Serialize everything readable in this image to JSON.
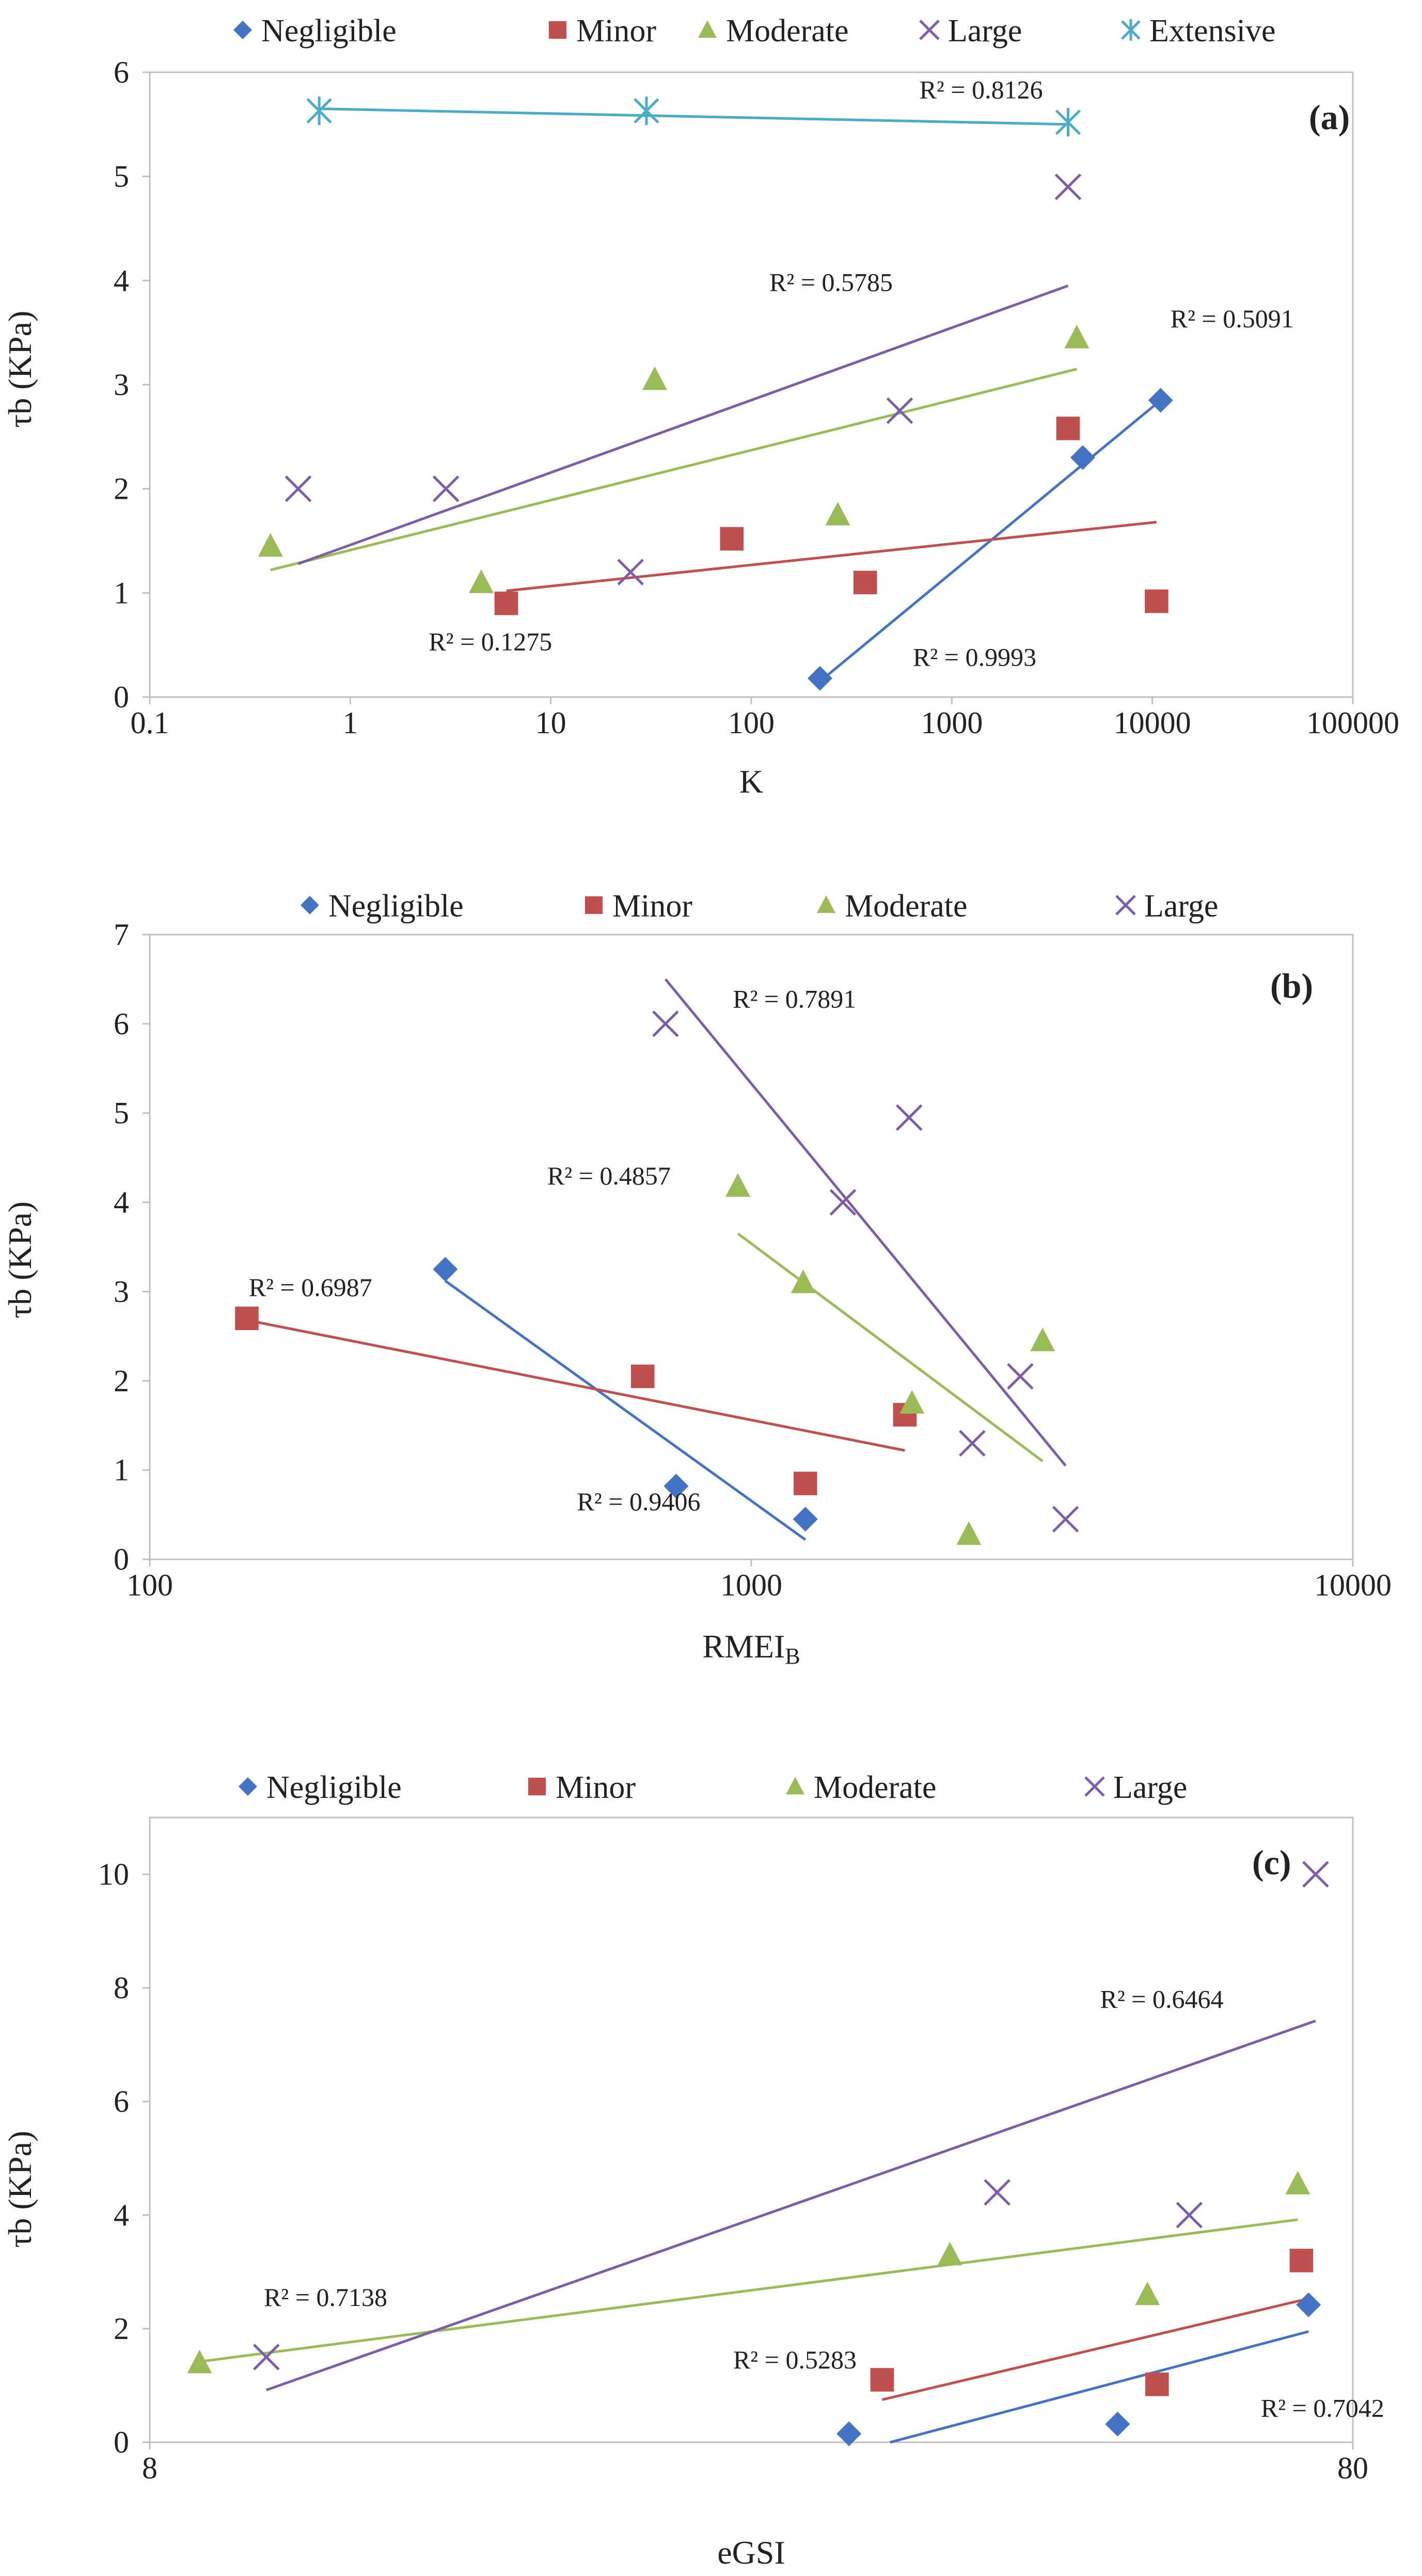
{
  "colors": {
    "Negligible": "#4472c4",
    "Minor": "#c0504d",
    "Moderate": "#9bbb59",
    "Large": "#7b5ea7",
    "Extensive": "#4bacc6",
    "axis": "#bfbfbf"
  },
  "chart_data": [
    {
      "type": "scatter",
      "panel_label": "(a)",
      "xscale": "log",
      "xlabel": "K",
      "ylabel": "τb (KPa)",
      "xlim": [
        0.1,
        100000
      ],
      "ylim": [
        0,
        6
      ],
      "xticks": [
        0.1,
        1,
        10,
        100,
        1000,
        10000,
        100000
      ],
      "xtick_labels": [
        "0.1",
        "1",
        "10",
        "100",
        "1000",
        "10000",
        "100000"
      ],
      "yticks": [
        0,
        1,
        2,
        3,
        4,
        5,
        6
      ],
      "ytick_labels": [
        "0",
        "1",
        "2",
        "3",
        "4",
        "5",
        "6"
      ],
      "legend": [
        "Negligible",
        "Minor",
        "Moderate",
        "Large",
        "Extensive"
      ],
      "series": [
        {
          "name": "Negligible",
          "marker": "diamond",
          "points": [
            [
              220,
              0.18
            ],
            [
              4500,
              2.3
            ],
            [
              11000,
              2.85
            ]
          ],
          "trend": {
            "x": [
              220,
              11000
            ],
            "y": [
              0.15,
              2.85
            ]
          },
          "r2": "R² = 0.9993",
          "r2_at": [
            1300,
            0.3
          ]
        },
        {
          "name": "Minor",
          "marker": "square",
          "points": [
            [
              6,
              0.9
            ],
            [
              80,
              1.52
            ],
            [
              370,
              1.1
            ],
            [
              3800,
              2.58
            ],
            [
              10500,
              0.92
            ]
          ],
          "trend": {
            "x": [
              6,
              10500
            ],
            "y": [
              1.02,
              1.68
            ]
          },
          "r2": "R² = 0.1275",
          "r2_at": [
            5,
            0.45
          ]
        },
        {
          "name": "Moderate",
          "marker": "triangle",
          "points": [
            [
              0.4,
              1.45
            ],
            [
              4.5,
              1.1
            ],
            [
              33,
              3.05
            ],
            [
              270,
              1.75
            ],
            [
              4200,
              3.45
            ]
          ],
          "trend": {
            "x": [
              0.4,
              4200
            ],
            "y": [
              1.22,
              3.15
            ]
          },
          "r2": "R² = 0.5091",
          "r2_at": [
            25000,
            3.55
          ]
        },
        {
          "name": "Large",
          "marker": "x",
          "points": [
            [
              0.55,
              2.0
            ],
            [
              3,
              2.0
            ],
            [
              25,
              1.2
            ],
            [
              550,
              2.75
            ],
            [
              3800,
              4.9
            ]
          ],
          "trend": {
            "x": [
              0.55,
              3800
            ],
            "y": [
              1.28,
              3.95
            ]
          },
          "r2": "R² = 0.5785",
          "r2_at": [
            250,
            3.9
          ]
        },
        {
          "name": "Extensive",
          "marker": "asterisk",
          "points": [
            [
              0.7,
              5.63
            ],
            [
              30,
              5.63
            ],
            [
              3800,
              5.52
            ]
          ],
          "trend": {
            "x": [
              0.7,
              3800
            ],
            "y": [
              5.65,
              5.5
            ]
          },
          "r2": "R² = 0.8126",
          "r2_at": [
            1400,
            5.75
          ]
        }
      ]
    },
    {
      "type": "scatter",
      "panel_label": "(b)",
      "xscale": "log",
      "xlabel": "RMEI",
      "xlabel_sub": "B",
      "ylabel": "τb (KPa)",
      "xlim": [
        100,
        10000
      ],
      "ylim": [
        0,
        7
      ],
      "xticks": [
        100,
        1000,
        10000
      ],
      "xtick_labels": [
        "100",
        "1000",
        "10000"
      ],
      "yticks": [
        0,
        1,
        2,
        3,
        4,
        5,
        6,
        7
      ],
      "ytick_labels": [
        "0",
        "1",
        "2",
        "3",
        "4",
        "5",
        "6",
        "7"
      ],
      "legend": [
        "Negligible",
        "Minor",
        "Moderate",
        "Large"
      ],
      "series": [
        {
          "name": "Negligible",
          "marker": "diamond",
          "points": [
            [
              310,
              3.25
            ],
            [
              750,
              0.82
            ],
            [
              1230,
              0.45
            ]
          ],
          "trend": {
            "x": [
              310,
              1230
            ],
            "y": [
              3.12,
              0.22
            ]
          },
          "r2": "R² = 0.9406",
          "r2_at": [
            650,
            0.55
          ]
        },
        {
          "name": "Minor",
          "marker": "square",
          "points": [
            [
              145,
              2.7
            ],
            [
              660,
              2.05
            ],
            [
              1230,
              0.85
            ],
            [
              1800,
              1.62
            ]
          ],
          "trend": {
            "x": [
              145,
              1800
            ],
            "y": [
              2.68,
              1.22
            ]
          },
          "r2": "R² = 0.6987",
          "r2_at": [
            185,
            2.95
          ]
        },
        {
          "name": "Moderate",
          "marker": "triangle",
          "points": [
            [
              950,
              4.18
            ],
            [
              1220,
              3.1
            ],
            [
              1850,
              1.75
            ],
            [
              2300,
              0.28
            ],
            [
              3050,
              2.45
            ]
          ],
          "trend": {
            "x": [
              950,
              3050
            ],
            "y": [
              3.65,
              1.1
            ]
          },
          "r2": "R² = 0.4857",
          "r2_at": [
            580,
            4.2
          ]
        },
        {
          "name": "Large",
          "marker": "x",
          "points": [
            [
              720,
              6.0
            ],
            [
              1420,
              4.0
            ],
            [
              1830,
              4.95
            ],
            [
              2330,
              1.3
            ],
            [
              2800,
              2.05
            ],
            [
              3330,
              0.45
            ]
          ],
          "trend": {
            "x": [
              720,
              3330
            ],
            "y": [
              6.5,
              1.05
            ]
          },
          "r2": "R² = 0.7891",
          "r2_at": [
            1180,
            6.18
          ]
        }
      ]
    },
    {
      "type": "scatter",
      "panel_label": "(c)",
      "xscale": "log",
      "xlabel": "eGSI",
      "ylabel": "τb (KPa)",
      "xlim": [
        8,
        80
      ],
      "ylim": [
        0,
        11
      ],
      "xticks": [
        8,
        80
      ],
      "xtick_labels": [
        "8",
        "80"
      ],
      "yticks": [
        0,
        2,
        4,
        6,
        8,
        10
      ],
      "ytick_labels": [
        "0",
        "2",
        "4",
        "6",
        "8",
        "10"
      ],
      "legend": [
        "Negligible",
        "Minor",
        "Moderate",
        "Large"
      ],
      "series": [
        {
          "name": "Negligible",
          "marker": "diamond",
          "points": [
            [
              30.5,
              0.15
            ],
            [
              51,
              0.32
            ],
            [
              73.5,
              2.42
            ]
          ],
          "trend": {
            "x": [
              33,
              73.5
            ],
            "y": [
              0.0,
              1.95
            ]
          },
          "r2": "R² = 0.7042",
          "r2_at": [
            75.5,
            0.45
          ]
        },
        {
          "name": "Minor",
          "marker": "square",
          "points": [
            [
              32.5,
              1.1
            ],
            [
              55,
              1.02
            ],
            [
              72.5,
              3.2
            ]
          ],
          "trend": {
            "x": [
              32.5,
              72.5
            ],
            "y": [
              0.75,
              2.5
            ]
          },
          "r2": "R² = 0.5283",
          "r2_at": [
            27.5,
            1.3
          ]
        },
        {
          "name": "Moderate",
          "marker": "triangle",
          "points": [
            [
              8.8,
              1.4
            ],
            [
              37,
              3.3
            ],
            [
              54,
              2.6
            ],
            [
              72,
              4.55
            ]
          ],
          "trend": {
            "x": [
              8.8,
              72
            ],
            "y": [
              1.42,
              3.92
            ]
          },
          "r2": "R² = 0.7138",
          "r2_at": [
            11.2,
            2.4
          ]
        },
        {
          "name": "Large",
          "marker": "x",
          "points": [
            [
              10,
              1.5
            ],
            [
              40.5,
              4.4
            ],
            [
              58.5,
              4.0
            ],
            [
              74.5,
              10.0
            ]
          ],
          "trend": {
            "x": [
              10,
              74.5
            ],
            "y": [
              0.92,
              7.42
            ]
          },
          "r2": "R² = 0.6464",
          "r2_at": [
            55.5,
            7.65
          ]
        }
      ]
    }
  ]
}
